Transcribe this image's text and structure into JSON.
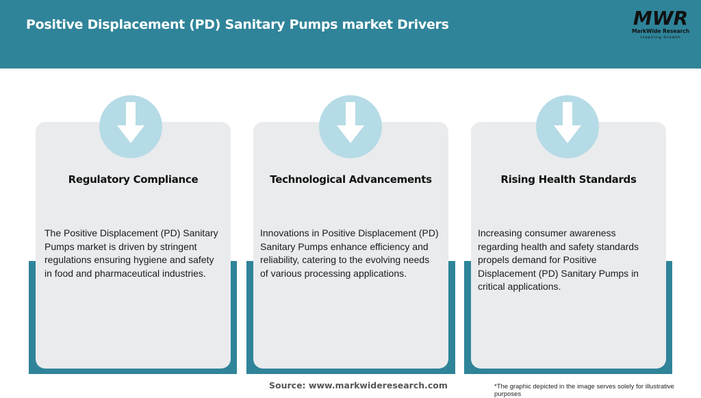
{
  "header": {
    "title": "Positive Displacement (PD) Sanitary Pumps market Drivers",
    "background": "#2f8499"
  },
  "logo": {
    "mark": "MWR",
    "name": "MarkWide Research",
    "tagline": "Inspiring Growth"
  },
  "cards": [
    {
      "icon": "arrow-down-icon",
      "title": "Regulatory Compliance",
      "text": "The Positive Displacement (PD) Sanitary Pumps market is driven by stringent regulations ensuring hygiene and safety in food and pharmaceutical industries."
    },
    {
      "icon": "arrow-down-icon",
      "title": "Technological Advancements",
      "text": "Innovations in Positive Displacement (PD) Sanitary Pumps enhance efficiency and reliability, catering to the evolving needs of various processing applications."
    },
    {
      "icon": "arrow-down-icon",
      "title": "Rising Health Standards",
      "text": "Increasing consumer awareness regarding health and safety standards propels demand for Positive Displacement (PD) Sanitary Pumps in critical applications."
    }
  ],
  "footer": {
    "source": "Source: www.markwideresearch.com",
    "note": "*The graphic depicted in the image serves solely for illustrative purposes"
  },
  "colors": {
    "accent": "#2f8499",
    "circle": "#b5dbe6",
    "card": "#e9ebed"
  }
}
